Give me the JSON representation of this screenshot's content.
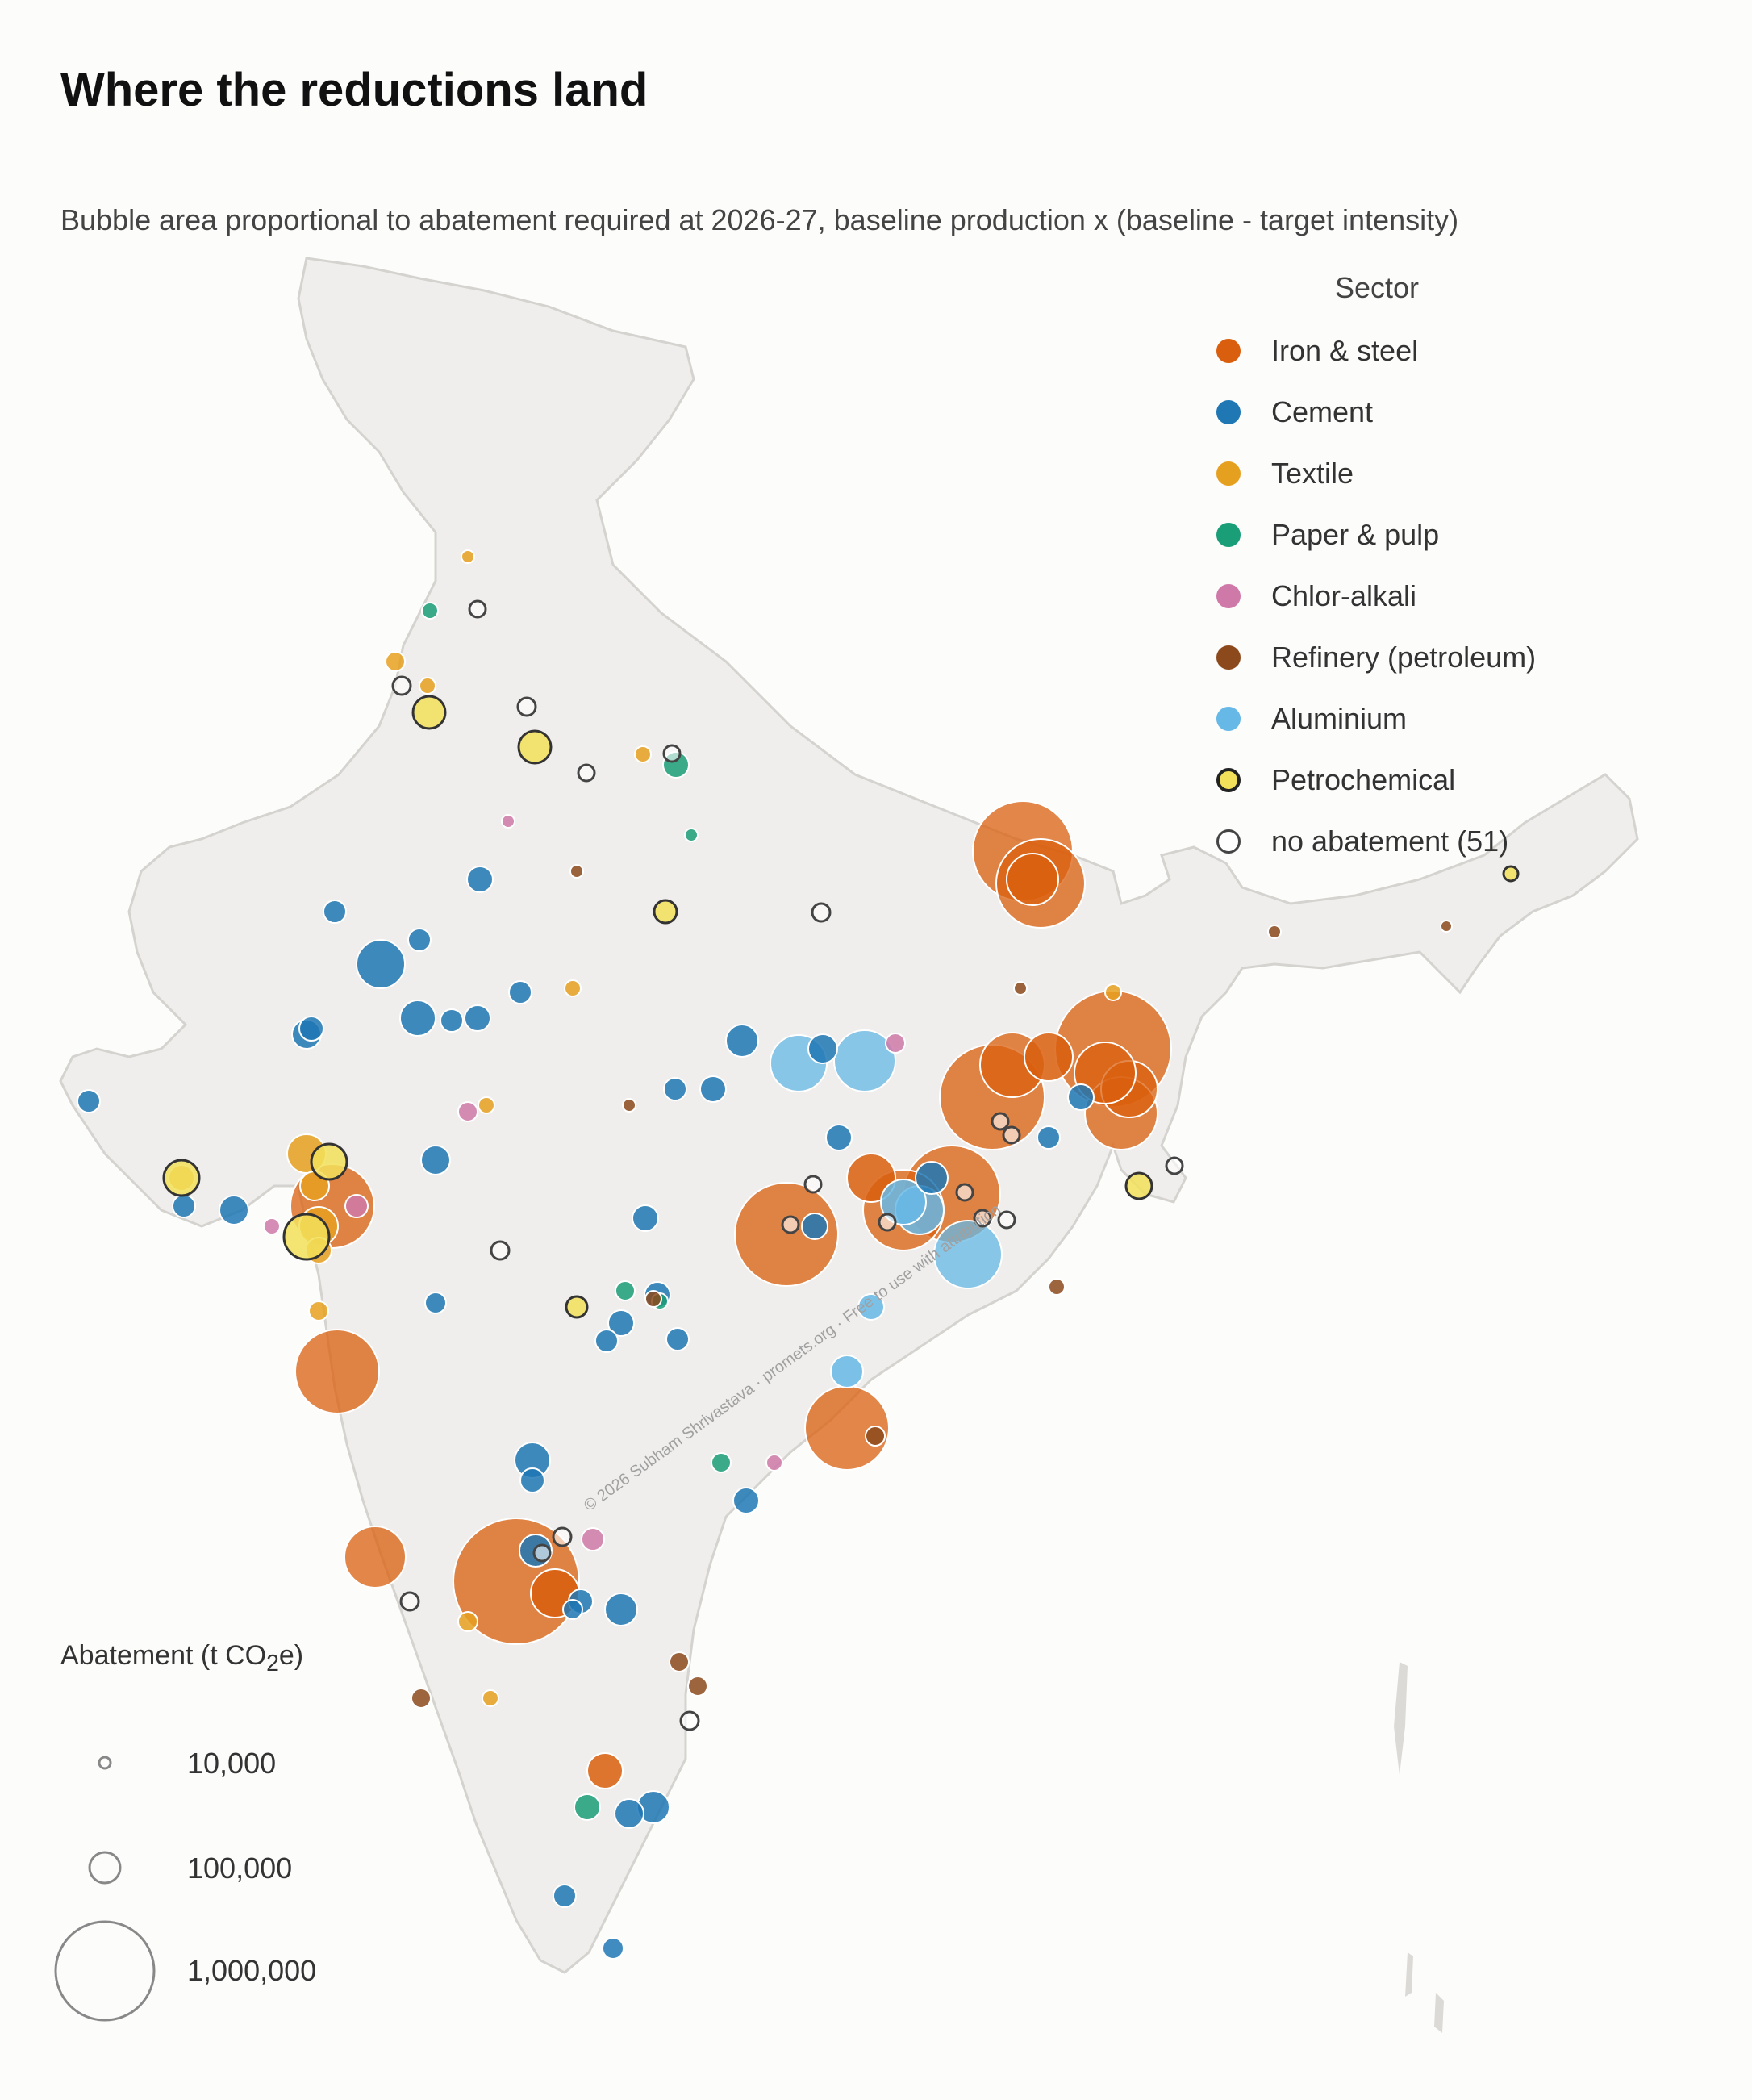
{
  "title": "Where the reductions land",
  "subtitle": "Bubble area proportional to abatement required at 2026-27, baseline production x (baseline - target intensity)",
  "legend": {
    "title": "Sector",
    "items": [
      {
        "label": "Iron & steel",
        "color": "#d95f0e",
        "key": "iron_steel"
      },
      {
        "label": "Cement",
        "color": "#1f77b4",
        "key": "cement"
      },
      {
        "label": "Textile",
        "color": "#e6a020",
        "key": "textile"
      },
      {
        "label": "Paper & pulp",
        "color": "#1a9e77",
        "key": "paper"
      },
      {
        "label": "Chlor-alkali",
        "color": "#cf79a8",
        "key": "chlor"
      },
      {
        "label": "Refinery (petroleum)",
        "color": "#8c4a1c",
        "key": "refinery"
      },
      {
        "label": "Aluminium",
        "color": "#66b8e6",
        "key": "aluminium"
      },
      {
        "label": "Petrochemical",
        "color": "#f2e05a",
        "key": "petro"
      },
      {
        "label": "no abatement (51)",
        "color": "#ffffff",
        "key": "none"
      }
    ]
  },
  "size_legend": {
    "title_prefix": "Abatement (t CO",
    "title_sub": "2",
    "title_suffix": "e)",
    "items": [
      {
        "label": "10,000",
        "value": 10000
      },
      {
        "label": "100,000",
        "value": 100000
      },
      {
        "label": "1,000,000",
        "value": 1000000
      }
    ]
  },
  "watermark": "© 2026 Subham Shrivastava · promets.org · Free to use with attribution",
  "colors": {
    "land": "#efeeec",
    "border": "#d5d3cf",
    "background": "#fcfcfb"
  }
}
